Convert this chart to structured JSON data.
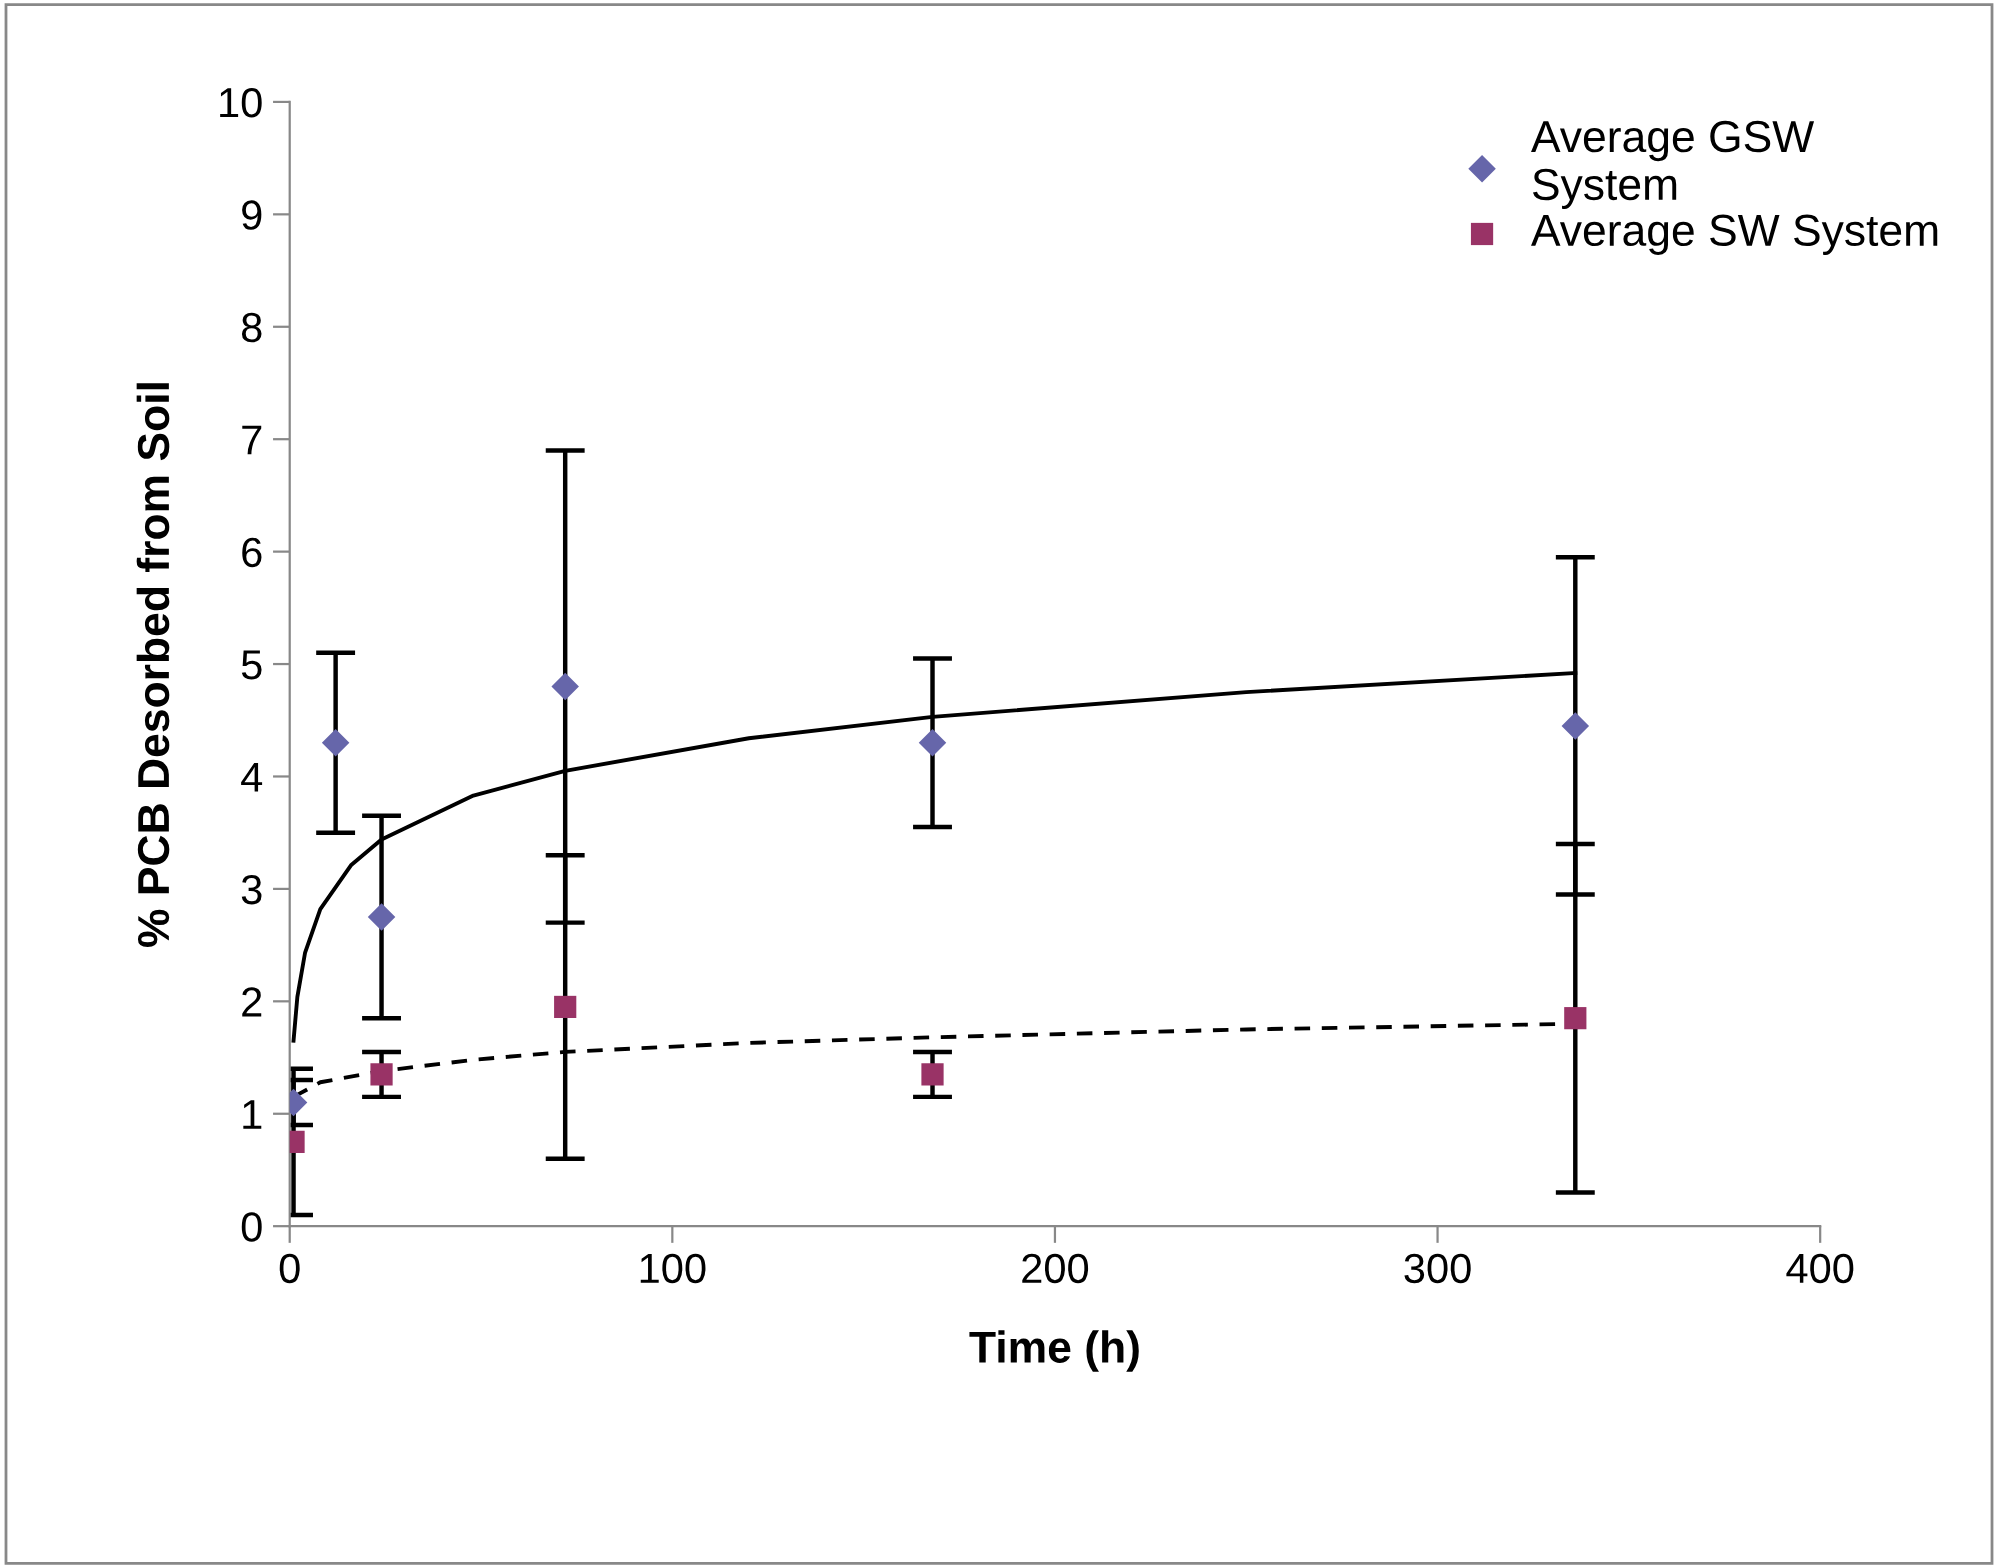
{
  "chart_data": {
    "type": "scatter",
    "xlabel": "Time (h)",
    "ylabel": "% PCB Desorbed from Soil",
    "xlim": [
      0,
      400
    ],
    "xticks": [
      0,
      100,
      200,
      300,
      400
    ],
    "ylim": [
      0,
      10
    ],
    "yticks": [
      0,
      1,
      2,
      3,
      4,
      5,
      6,
      7,
      8,
      9,
      10
    ],
    "grid": false,
    "legend": "top right",
    "series": [
      {
        "name": "Average GSW\nSystem",
        "marker": "diamond",
        "color": "#6666aa",
        "x": [
          1,
          12,
          24,
          72,
          168,
          336
        ],
        "values": [
          1.1,
          4.3,
          2.75,
          4.8,
          4.3,
          4.45
        ],
        "errors": [
          0.2,
          0.8,
          0.9,
          2.1,
          0.75,
          1.5
        ]
      },
      {
        "name": "Average SW System",
        "marker": "square",
        "color": "#993366",
        "x": [
          1,
          24,
          72,
          168,
          336
        ],
        "values": [
          0.75,
          1.35,
          1.95,
          1.35,
          1.85
        ],
        "errors": [
          0.65,
          0.2,
          1.35,
          0.2,
          1.55
        ]
      },
      {
        "type": "line",
        "line_style": "solid",
        "color": "#000000",
        "x": [
          1,
          2,
          4,
          8,
          16,
          24,
          48,
          72,
          120,
          168,
          250,
          336
        ],
        "values": [
          1.65,
          2.04,
          2.43,
          2.82,
          3.21,
          3.44,
          3.83,
          4.05,
          4.34,
          4.53,
          4.75,
          4.92
        ]
      },
      {
        "type": "line",
        "line_style": "dashed",
        "color": "#000000",
        "x": [
          1,
          8,
          24,
          48,
          72,
          120,
          168,
          250,
          336
        ],
        "values": [
          1.15,
          1.28,
          1.38,
          1.48,
          1.55,
          1.63,
          1.68,
          1.75,
          1.8
        ]
      }
    ]
  }
}
